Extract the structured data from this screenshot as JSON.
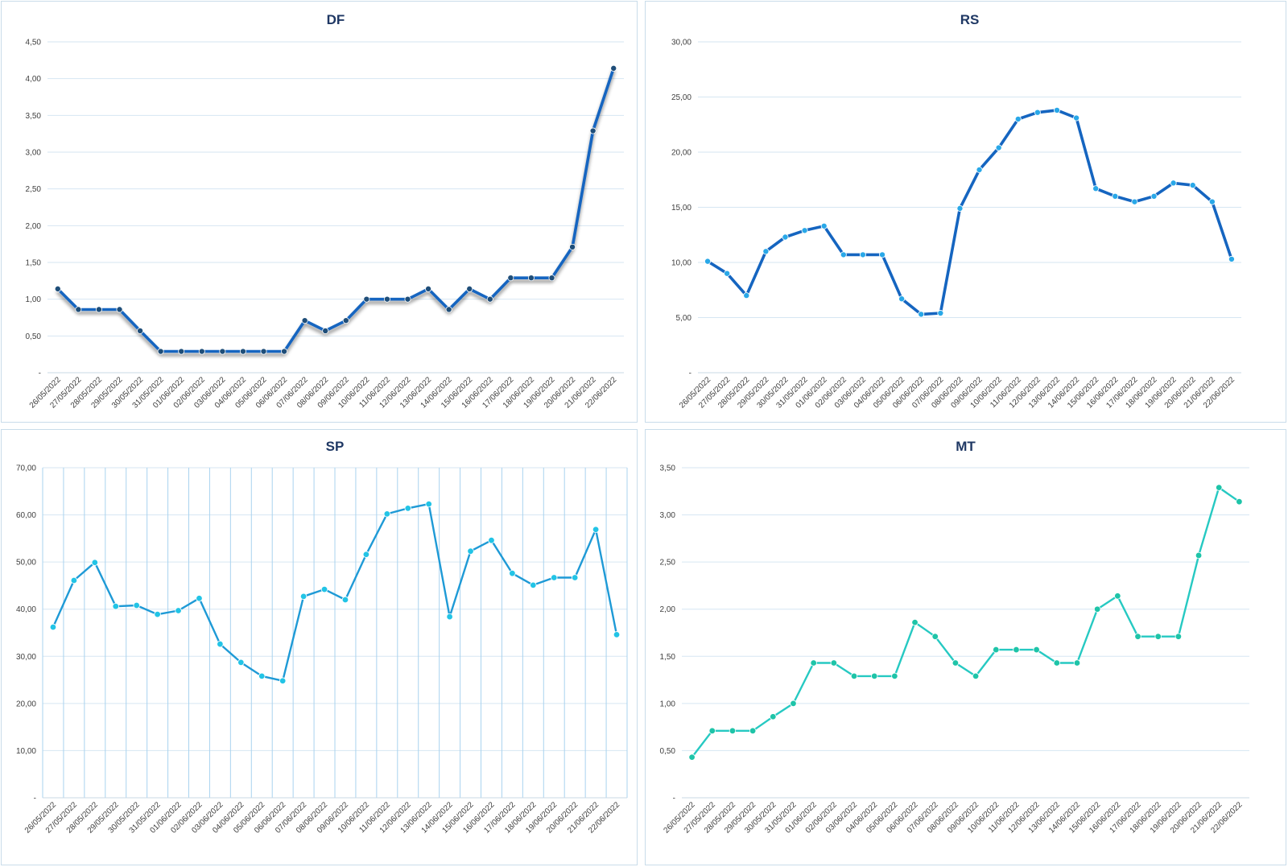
{
  "dates": [
    "26/05/2022",
    "27/05/2022",
    "28/05/2022",
    "29/05/2022",
    "30/05/2022",
    "31/05/2022",
    "01/06/2022",
    "02/06/2022",
    "03/06/2022",
    "04/06/2022",
    "05/06/2022",
    "06/06/2022",
    "07/06/2022",
    "08/06/2022",
    "09/06/2022",
    "10/06/2022",
    "11/06/2022",
    "12/06/2022",
    "13/06/2022",
    "14/06/2022",
    "15/06/2022",
    "16/06/2022",
    "17/06/2022",
    "18/06/2022",
    "19/06/2022",
    "20/06/2022",
    "21/06/2022",
    "22/06/2022"
  ],
  "chart_data": [
    {
      "id": "df",
      "type": "line",
      "title": "DF",
      "color": "#1565c0",
      "marker_color": "#1f4e79",
      "line_width": "thick",
      "shadow": true,
      "vertical_grid": false,
      "ylim": [
        0,
        4.5
      ],
      "yticks": [
        0,
        0.5,
        1.0,
        1.5,
        2.0,
        2.5,
        3.0,
        3.5,
        4.0,
        4.5
      ],
      "ytick_labels": [
        "-",
        "0,50",
        "1,00",
        "1,50",
        "2,00",
        "2,50",
        "3,00",
        "3,50",
        "4,00",
        "4,50"
      ],
      "values": [
        1.14,
        0.86,
        0.86,
        0.86,
        0.57,
        0.29,
        0.29,
        0.29,
        0.29,
        0.29,
        0.29,
        0.29,
        0.71,
        0.57,
        0.71,
        1.0,
        1.0,
        1.0,
        1.14,
        0.86,
        1.14,
        1.0,
        1.29,
        1.29,
        1.29,
        1.71,
        3.29,
        4.14
      ]
    },
    {
      "id": "rs",
      "type": "line",
      "title": "RS",
      "color": "#1565c0",
      "marker_color": "#29a8e8",
      "line_width": "thick",
      "shadow": false,
      "vertical_grid": false,
      "ylim": [
        0,
        30
      ],
      "yticks": [
        0,
        5,
        10,
        15,
        20,
        25,
        30
      ],
      "ytick_labels": [
        "-",
        "5,00",
        "10,00",
        "15,00",
        "20,00",
        "25,00",
        "30,00"
      ],
      "values": [
        10.1,
        9.0,
        7.0,
        11.0,
        12.3,
        12.9,
        13.3,
        10.7,
        10.7,
        10.7,
        6.7,
        5.3,
        5.4,
        14.9,
        18.4,
        20.4,
        23.0,
        23.6,
        23.8,
        23.1,
        16.7,
        16.0,
        15.5,
        16.0,
        17.2,
        17.0,
        15.5,
        10.3
      ]
    },
    {
      "id": "sp",
      "type": "line",
      "title": "SP",
      "color": "#1e9ad6",
      "marker_color": "#22c4e6",
      "line_width": "medium",
      "shadow": false,
      "vertical_grid": true,
      "ylim": [
        0,
        70
      ],
      "yticks": [
        0,
        10,
        20,
        30,
        40,
        50,
        60,
        70
      ],
      "ytick_labels": [
        "-",
        "10,00",
        "20,00",
        "30,00",
        "40,00",
        "50,00",
        "60,00",
        "70,00"
      ],
      "values": [
        36.2,
        46.1,
        49.9,
        40.6,
        40.8,
        38.9,
        39.7,
        42.3,
        32.6,
        28.7,
        25.8,
        24.8,
        42.7,
        44.2,
        42.0,
        51.6,
        60.2,
        61.4,
        62.3,
        38.4,
        52.3,
        54.6,
        47.6,
        45.1,
        46.7,
        46.7,
        56.9,
        34.6
      ]
    },
    {
      "id": "mt",
      "type": "line",
      "title": "MT",
      "color": "#26c9c2",
      "marker_color": "#1ec4a8",
      "line_width": "medium",
      "shadow": false,
      "vertical_grid": false,
      "ylim": [
        0,
        3.5
      ],
      "yticks": [
        0,
        0.5,
        1.0,
        1.5,
        2.0,
        2.5,
        3.0,
        3.5
      ],
      "ytick_labels": [
        "-",
        "0,50",
        "1,00",
        "1,50",
        "2,00",
        "2,50",
        "3,00",
        "3,50"
      ],
      "values": [
        0.43,
        0.71,
        0.71,
        0.71,
        0.86,
        1.0,
        1.43,
        1.43,
        1.29,
        1.29,
        1.29,
        1.86,
        1.71,
        1.43,
        1.29,
        1.57,
        1.57,
        1.57,
        1.43,
        1.43,
        2.0,
        2.14,
        1.71,
        1.71,
        1.71,
        2.57,
        3.29,
        3.14
      ]
    }
  ]
}
